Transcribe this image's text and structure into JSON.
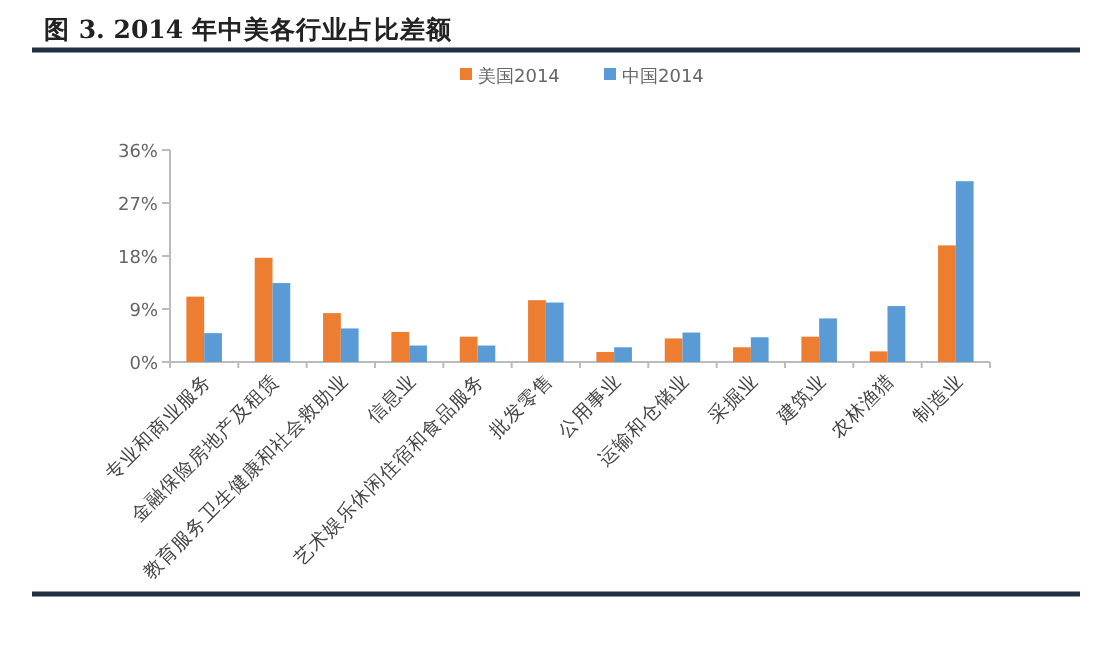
{
  "chart_data": {
    "type": "bar",
    "title": "图 3.   2014 年中美各行业占比差额",
    "categories": [
      "专业和商业服务",
      "金融保险房地产及租赁",
      "教育服务卫生健康和社会救助业",
      "信息业",
      "艺术娱乐休闲住宿和食品服务",
      "批发零售",
      "公用事业",
      "运输和仓储业",
      "采掘业",
      "建筑业",
      "农林渔猎",
      "制造业"
    ],
    "series": [
      {
        "name": "美国2014",
        "color": "#ed7d31",
        "values": [
          11.1,
          17.7,
          8.3,
          5.1,
          4.3,
          10.5,
          1.7,
          4.0,
          2.5,
          4.3,
          1.8,
          19.8
        ]
      },
      {
        "name": "中国2014",
        "color": "#5b9bd5",
        "values": [
          4.9,
          13.4,
          5.7,
          2.8,
          2.8,
          10.1,
          2.5,
          5.0,
          4.2,
          7.4,
          9.5,
          30.7
        ]
      }
    ],
    "ylim": [
      0,
      36
    ],
    "yticks": [
      {
        "value": 0,
        "label": "0%"
      },
      {
        "value": 9,
        "label": "9%"
      },
      {
        "value": 18,
        "label": "18%"
      },
      {
        "value": 27,
        "label": "27%"
      },
      {
        "value": 36,
        "label": "36%"
      }
    ],
    "legend": "top"
  }
}
